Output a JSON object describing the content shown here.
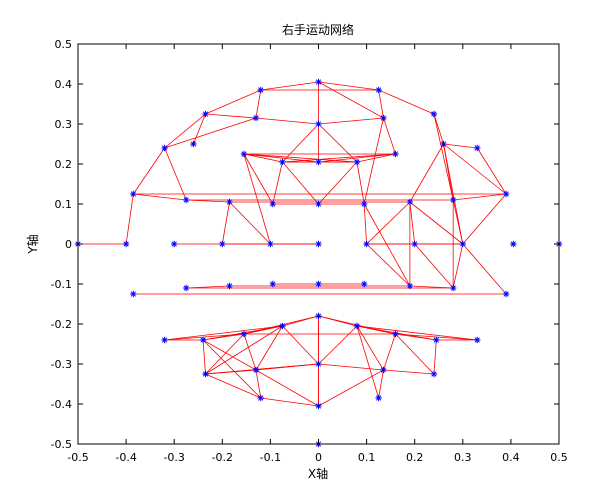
{
  "chart_data": {
    "type": "scatter",
    "title": "右手运动网络",
    "xlabel": "X轴",
    "ylabel": "Y轴",
    "xlim": [
      -0.5,
      0.5
    ],
    "ylim": [
      -0.5,
      0.5
    ],
    "xticks": [
      -0.5,
      -0.4,
      -0.3,
      -0.2,
      -0.1,
      0,
      0.1,
      0.2,
      0.3,
      0.4,
      0.5
    ],
    "yticks": [
      -0.5,
      -0.4,
      -0.3,
      -0.2,
      -0.1,
      0,
      0.1,
      0.2,
      0.3,
      0.4,
      0.5
    ],
    "xtick_labels": [
      "-0.5",
      "-0.4",
      "-0.3",
      "-0.2",
      "-0.1",
      "0",
      "0.1",
      "0.2",
      "0.3",
      "0.4",
      "0.5"
    ],
    "ytick_labels": [
      "-0.5",
      "-0.4",
      "-0.3",
      "-0.2",
      "-0.1",
      "0",
      "0.1",
      "0.2",
      "0.3",
      "0.4",
      "0.5"
    ],
    "grid": false,
    "colors": {
      "nodes": "#0000ff",
      "edges": "#ff0000",
      "axes": "#000000",
      "background": "#ffffff"
    },
    "marker": "asterisk",
    "nodes": [
      [
        0,
        0.405
      ],
      [
        -0.12,
        0.385
      ],
      [
        0.125,
        0.385
      ],
      [
        -0.235,
        0.325
      ],
      [
        0.24,
        0.325
      ],
      [
        -0.13,
        0.315
      ],
      [
        0.135,
        0.315
      ],
      [
        0,
        0.3
      ],
      [
        -0.26,
        0.25
      ],
      [
        0.26,
        0.25
      ],
      [
        -0.32,
        0.24
      ],
      [
        0.33,
        0.24
      ],
      [
        -0.155,
        0.225
      ],
      [
        0.16,
        0.225
      ],
      [
        -0.075,
        0.205
      ],
      [
        0.08,
        0.205
      ],
      [
        0,
        0.205
      ],
      [
        -0.385,
        0.125
      ],
      [
        0.39,
        0.125
      ],
      [
        -0.275,
        0.11
      ],
      [
        0.28,
        0.11
      ],
      [
        -0.185,
        0.105
      ],
      [
        0.19,
        0.105
      ],
      [
        -0.095,
        0.1
      ],
      [
        0.095,
        0.1
      ],
      [
        0,
        0.1
      ],
      [
        -0.5,
        0
      ],
      [
        -0.4,
        0
      ],
      [
        -0.3,
        0
      ],
      [
        -0.2,
        0
      ],
      [
        -0.1,
        0
      ],
      [
        0,
        0
      ],
      [
        0.1,
        0
      ],
      [
        0.2,
        0
      ],
      [
        0.3,
        0
      ],
      [
        0.405,
        0
      ],
      [
        0.5,
        0
      ],
      [
        -0.385,
        -0.125
      ],
      [
        0.39,
        -0.125
      ],
      [
        -0.275,
        -0.11
      ],
      [
        0.28,
        -0.11
      ],
      [
        -0.185,
        -0.105
      ],
      [
        0.19,
        -0.105
      ],
      [
        -0.095,
        -0.1
      ],
      [
        0.095,
        -0.1
      ],
      [
        0,
        -0.1
      ],
      [
        0,
        -0.18
      ],
      [
        -0.075,
        -0.205
      ],
      [
        0.08,
        -0.205
      ],
      [
        -0.155,
        -0.225
      ],
      [
        0.16,
        -0.225
      ],
      [
        -0.32,
        -0.24
      ],
      [
        0.33,
        -0.24
      ],
      [
        -0.24,
        -0.24
      ],
      [
        0.245,
        -0.24
      ],
      [
        -0.235,
        -0.325
      ],
      [
        0.24,
        -0.325
      ],
      [
        -0.13,
        -0.315
      ],
      [
        0.135,
        -0.315
      ],
      [
        0,
        -0.3
      ],
      [
        -0.12,
        -0.385
      ],
      [
        0.125,
        -0.385
      ],
      [
        0,
        -0.405
      ],
      [
        0,
        -0.5
      ]
    ],
    "edges": [
      [
        0,
        1
      ],
      [
        0,
        2
      ],
      [
        1,
        3
      ],
      [
        2,
        4
      ],
      [
        0,
        7
      ],
      [
        0,
        6
      ],
      [
        1,
        2
      ],
      [
        3,
        5
      ],
      [
        1,
        5
      ],
      [
        3,
        10
      ],
      [
        3,
        8
      ],
      [
        5,
        10
      ],
      [
        10,
        17
      ],
      [
        10,
        19
      ],
      [
        17,
        19
      ],
      [
        17,
        27
      ],
      [
        19,
        21
      ],
      [
        12,
        13
      ],
      [
        12,
        14
      ],
      [
        12,
        15
      ],
      [
        12,
        16
      ],
      [
        13,
        14
      ],
      [
        13,
        15
      ],
      [
        13,
        16
      ],
      [
        14,
        16
      ],
      [
        15,
        16
      ],
      [
        14,
        15
      ],
      [
        7,
        5
      ],
      [
        7,
        6
      ],
      [
        7,
        16
      ],
      [
        7,
        14
      ],
      [
        7,
        15
      ],
      [
        6,
        13
      ],
      [
        6,
        24
      ],
      [
        6,
        2
      ],
      [
        4,
        9
      ],
      [
        4,
        20
      ],
      [
        9,
        11
      ],
      [
        9,
        18
      ],
      [
        9,
        20
      ],
      [
        11,
        18
      ],
      [
        9,
        34
      ],
      [
        22,
        9
      ],
      [
        22,
        34
      ],
      [
        22,
        33
      ],
      [
        22,
        32
      ],
      [
        22,
        42
      ],
      [
        18,
        34
      ],
      [
        18,
        20
      ],
      [
        20,
        34
      ],
      [
        20,
        40
      ],
      [
        34,
        40
      ],
      [
        34,
        38
      ],
      [
        33,
        40
      ],
      [
        32,
        42
      ],
      [
        12,
        23
      ],
      [
        14,
        23
      ],
      [
        14,
        25
      ],
      [
        15,
        25
      ],
      [
        15,
        24
      ],
      [
        12,
        30
      ],
      [
        21,
        29
      ],
      [
        21,
        30
      ],
      [
        17,
        18
      ],
      [
        19,
        20
      ],
      [
        21,
        22
      ],
      [
        23,
        24
      ],
      [
        26,
        27
      ],
      [
        28,
        31
      ],
      [
        29,
        31
      ],
      [
        32,
        34
      ],
      [
        33,
        34
      ],
      [
        32,
        33
      ],
      [
        32,
        24
      ],
      [
        24,
        42
      ],
      [
        37,
        38
      ],
      [
        39,
        40
      ],
      [
        41,
        42
      ],
      [
        43,
        44
      ],
      [
        39,
        41
      ],
      [
        40,
        42
      ],
      [
        46,
        47
      ],
      [
        46,
        48
      ],
      [
        46,
        49
      ],
      [
        46,
        50
      ],
      [
        46,
        59
      ],
      [
        46,
        62
      ],
      [
        47,
        49
      ],
      [
        47,
        53
      ],
      [
        47,
        55
      ],
      [
        47,
        57
      ],
      [
        47,
        59
      ],
      [
        47,
        51
      ],
      [
        48,
        50
      ],
      [
        48,
        54
      ],
      [
        48,
        58
      ],
      [
        48,
        59
      ],
      [
        48,
        52
      ],
      [
        48,
        61
      ],
      [
        49,
        51
      ],
      [
        49,
        53
      ],
      [
        49,
        55
      ],
      [
        49,
        57
      ],
      [
        49,
        50
      ],
      [
        50,
        52
      ],
      [
        50,
        54
      ],
      [
        50,
        56
      ],
      [
        50,
        58
      ],
      [
        51,
        53
      ],
      [
        53,
        55
      ],
      [
        53,
        57
      ],
      [
        52,
        54
      ],
      [
        54,
        56
      ],
      [
        55,
        57
      ],
      [
        55,
        59
      ],
      [
        57,
        59
      ],
      [
        58,
        59
      ],
      [
        56,
        58
      ],
      [
        57,
        60
      ],
      [
        57,
        62
      ],
      [
        60,
        62
      ],
      [
        58,
        61
      ],
      [
        58,
        62
      ],
      [
        59,
        62
      ],
      [
        59,
        55
      ],
      [
        55,
        60
      ],
      [
        53,
        60
      ]
    ]
  }
}
